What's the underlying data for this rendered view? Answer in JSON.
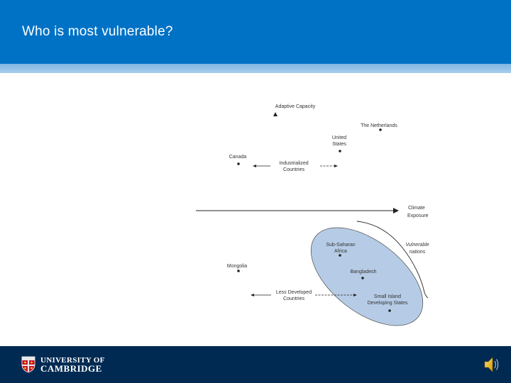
{
  "header": {
    "title": "Who is most vulnerable?",
    "color": "#0072c6"
  },
  "diagram": {
    "axis_y_label": "Adaptive Capacity",
    "axis_x_label_line1": "Climate",
    "axis_x_label_line2": "Exposure",
    "vulnerable_line1": "Vulnerable",
    "vulnerable_line2": "nations",
    "industrialized_line1": "Industrialized",
    "industrialized_line2": "Countries",
    "ldc_line1": "Less Developed",
    "ldc_line2": "Countries",
    "countries": {
      "netherlands": "The Netherlands",
      "united_states_line1": "United",
      "united_states_line2": "States",
      "canada": "Canada",
      "mongolia": "Mongolia",
      "ssa_line1": "Sub-Saharan",
      "ssa_line2": "Africa",
      "bangladesh": "Bangladesh",
      "sids_line1": "Small Island",
      "sids_line2": "Developing States"
    },
    "ellipse_color": "#b6cce6"
  },
  "footer": {
    "logo_line1": "UNIVERSITY OF",
    "logo_line2": "CAMBRIDGE",
    "icons": {
      "crest": "university-crest",
      "audio": "speaker-icon"
    },
    "color": "#002a52"
  }
}
